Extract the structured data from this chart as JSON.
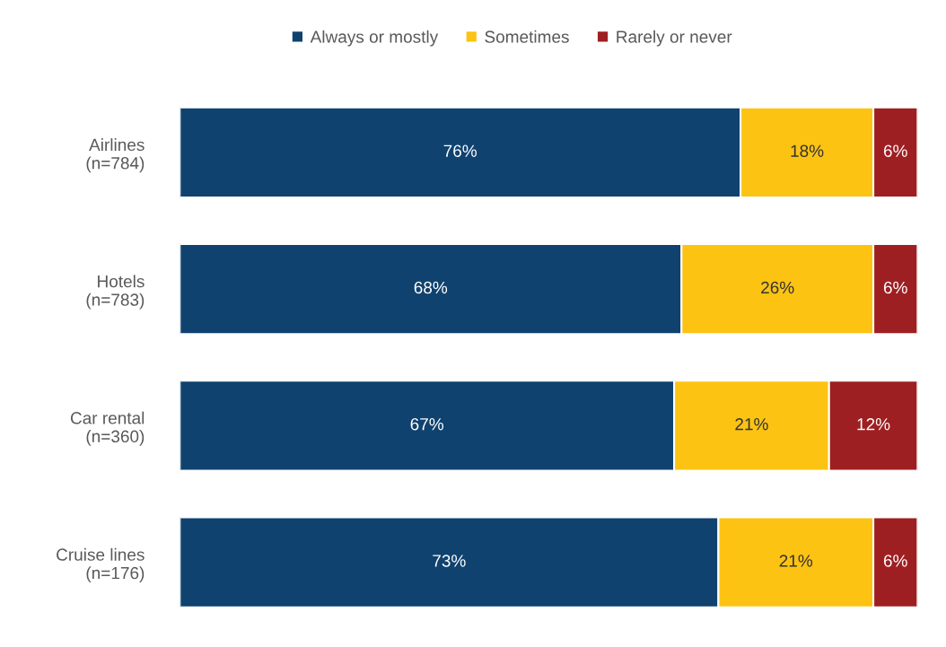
{
  "chart_data": {
    "type": "bar",
    "orientation": "horizontal",
    "stacked": true,
    "tick_labels": "y",
    "legend": "top",
    "grid": false,
    "categories": [
      "Airlines\n(n=784)",
      "Hotels\n(n=783)",
      "Car rental\n(n=360)",
      "Cruise lines\n(n=176)"
    ],
    "series": [
      {
        "name": "Always or mostly",
        "color": "#10426f",
        "values": [
          76,
          68,
          67,
          73
        ],
        "value_labels": [
          "76%",
          "68%",
          "67%",
          "73%"
        ]
      },
      {
        "name": "Sometimes",
        "color": "#fdc313",
        "values": [
          18,
          26,
          21,
          21
        ],
        "value_labels": [
          "18%",
          "26%",
          "21%",
          "21%"
        ]
      },
      {
        "name": "Rarely or never",
        "color": "#9e1f22",
        "values": [
          6,
          6,
          12,
          6
        ],
        "value_labels": [
          "6%",
          "6%",
          "12%",
          "6%"
        ]
      }
    ]
  }
}
